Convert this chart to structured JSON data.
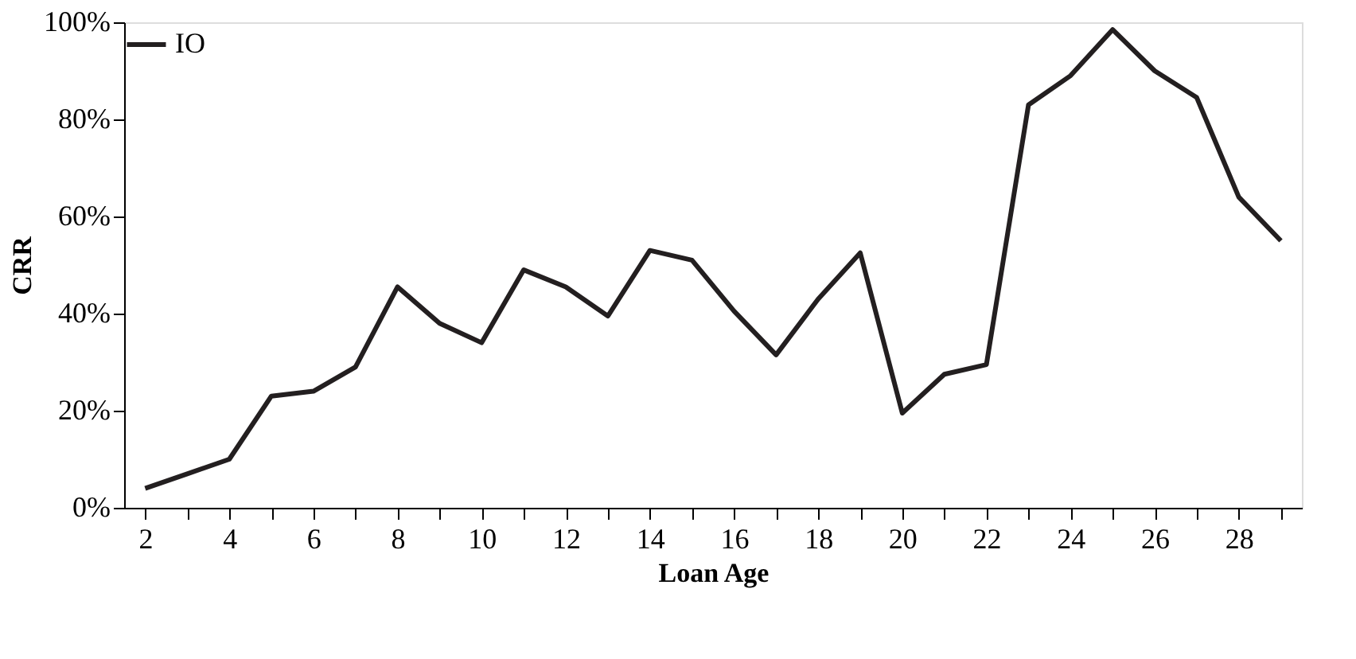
{
  "chart_data": {
    "type": "line",
    "xlabel": "Loan Age",
    "ylabel": "CRR",
    "x": [
      2,
      3,
      4,
      5,
      6,
      7,
      8,
      9,
      10,
      11,
      12,
      13,
      14,
      15,
      16,
      17,
      18,
      19,
      20,
      21,
      22,
      23,
      24,
      25,
      26,
      27,
      28,
      29
    ],
    "series": [
      {
        "name": "IO",
        "color": "#231f20",
        "values": [
          4,
          7,
          10,
          23,
          24,
          29,
          45.5,
          38,
          34,
          49,
          45.5,
          39.5,
          53,
          51,
          40.5,
          31.5,
          43,
          52.5,
          19.5,
          27.5,
          29.5,
          83,
          89,
          98.5,
          90,
          84.5,
          64,
          55
        ]
      }
    ],
    "xlim": [
      1.5,
      29.5
    ],
    "xticks": [
      2,
      {
        "value": 3,
        "label": null
      },
      4,
      {
        "value": 5,
        "label": null
      },
      6,
      {
        "value": 7,
        "label": null
      },
      8,
      {
        "value": 9,
        "label": null
      },
      10,
      {
        "value": 11,
        "label": null
      },
      12,
      {
        "value": 13,
        "label": null
      },
      14,
      {
        "value": 15,
        "label": null
      },
      16,
      {
        "value": 17,
        "label": null
      },
      18,
      {
        "value": 19,
        "label": null
      },
      20,
      {
        "value": 21,
        "label": null
      },
      22,
      {
        "value": 23,
        "label": null
      },
      24,
      {
        "value": 25,
        "label": null
      },
      26,
      {
        "value": 27,
        "label": null
      },
      28,
      {
        "value": 29,
        "label": null
      }
    ],
    "ylim": [
      0,
      100
    ],
    "yticks": [
      {
        "value": 0,
        "label": "0%"
      },
      {
        "value": 20,
        "label": "20%"
      },
      {
        "value": 40,
        "label": "40%"
      },
      {
        "value": 60,
        "label": "60%"
      },
      {
        "value": 80,
        "label": "80%"
      },
      {
        "value": 100,
        "label": "100%"
      }
    ],
    "grid": false,
    "legend": "top left",
    "marker": "none",
    "line_style": "solid"
  }
}
